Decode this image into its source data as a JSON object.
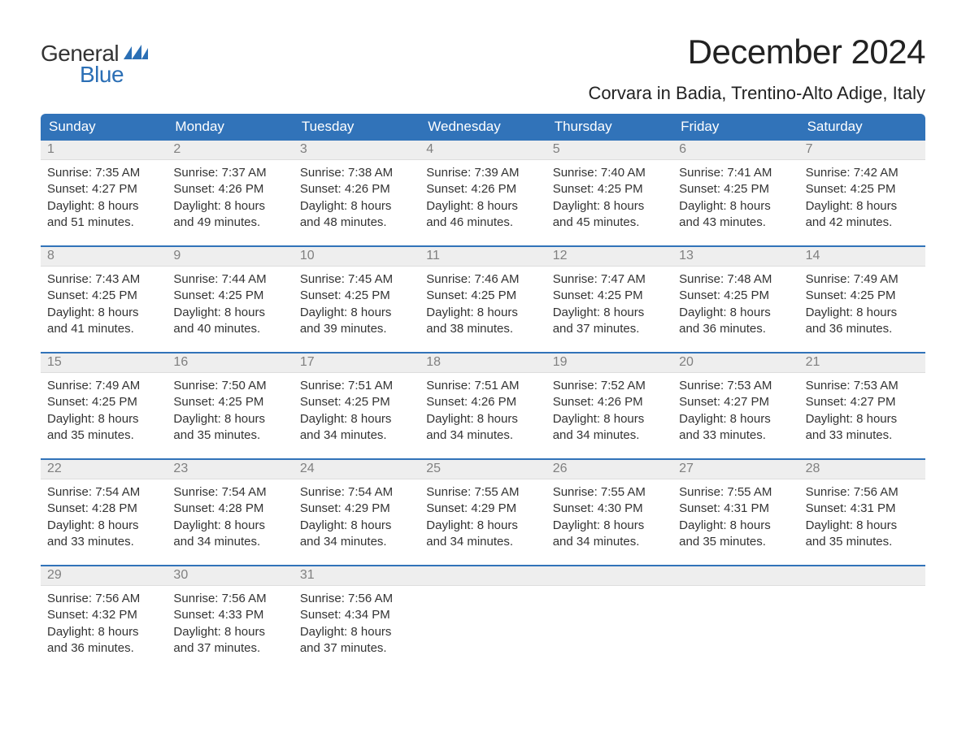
{
  "logo": {
    "text_general": "General",
    "text_blue": "Blue",
    "flag_color": "#2b6fb5"
  },
  "title": "December 2024",
  "location": "Corvara in Badia, Trentino-Alto Adige, Italy",
  "colors": {
    "header_bg": "#3173b9",
    "header_text": "#ffffff",
    "daynum_bg": "#eeeeee",
    "daynum_text": "#808080",
    "rule": "#3173b9",
    "body_text": "#333333",
    "background": "#ffffff"
  },
  "weekdays": [
    "Sunday",
    "Monday",
    "Tuesday",
    "Wednesday",
    "Thursday",
    "Friday",
    "Saturday"
  ],
  "weeks": [
    [
      {
        "day": "1",
        "sunrise": "Sunrise: 7:35 AM",
        "sunset": "Sunset: 4:27 PM",
        "daylight": "Daylight: 8 hours and 51 minutes."
      },
      {
        "day": "2",
        "sunrise": "Sunrise: 7:37 AM",
        "sunset": "Sunset: 4:26 PM",
        "daylight": "Daylight: 8 hours and 49 minutes."
      },
      {
        "day": "3",
        "sunrise": "Sunrise: 7:38 AM",
        "sunset": "Sunset: 4:26 PM",
        "daylight": "Daylight: 8 hours and 48 minutes."
      },
      {
        "day": "4",
        "sunrise": "Sunrise: 7:39 AM",
        "sunset": "Sunset: 4:26 PM",
        "daylight": "Daylight: 8 hours and 46 minutes."
      },
      {
        "day": "5",
        "sunrise": "Sunrise: 7:40 AM",
        "sunset": "Sunset: 4:25 PM",
        "daylight": "Daylight: 8 hours and 45 minutes."
      },
      {
        "day": "6",
        "sunrise": "Sunrise: 7:41 AM",
        "sunset": "Sunset: 4:25 PM",
        "daylight": "Daylight: 8 hours and 43 minutes."
      },
      {
        "day": "7",
        "sunrise": "Sunrise: 7:42 AM",
        "sunset": "Sunset: 4:25 PM",
        "daylight": "Daylight: 8 hours and 42 minutes."
      }
    ],
    [
      {
        "day": "8",
        "sunrise": "Sunrise: 7:43 AM",
        "sunset": "Sunset: 4:25 PM",
        "daylight": "Daylight: 8 hours and 41 minutes."
      },
      {
        "day": "9",
        "sunrise": "Sunrise: 7:44 AM",
        "sunset": "Sunset: 4:25 PM",
        "daylight": "Daylight: 8 hours and 40 minutes."
      },
      {
        "day": "10",
        "sunrise": "Sunrise: 7:45 AM",
        "sunset": "Sunset: 4:25 PM",
        "daylight": "Daylight: 8 hours and 39 minutes."
      },
      {
        "day": "11",
        "sunrise": "Sunrise: 7:46 AM",
        "sunset": "Sunset: 4:25 PM",
        "daylight": "Daylight: 8 hours and 38 minutes."
      },
      {
        "day": "12",
        "sunrise": "Sunrise: 7:47 AM",
        "sunset": "Sunset: 4:25 PM",
        "daylight": "Daylight: 8 hours and 37 minutes."
      },
      {
        "day": "13",
        "sunrise": "Sunrise: 7:48 AM",
        "sunset": "Sunset: 4:25 PM",
        "daylight": "Daylight: 8 hours and 36 minutes."
      },
      {
        "day": "14",
        "sunrise": "Sunrise: 7:49 AM",
        "sunset": "Sunset: 4:25 PM",
        "daylight": "Daylight: 8 hours and 36 minutes."
      }
    ],
    [
      {
        "day": "15",
        "sunrise": "Sunrise: 7:49 AM",
        "sunset": "Sunset: 4:25 PM",
        "daylight": "Daylight: 8 hours and 35 minutes."
      },
      {
        "day": "16",
        "sunrise": "Sunrise: 7:50 AM",
        "sunset": "Sunset: 4:25 PM",
        "daylight": "Daylight: 8 hours and 35 minutes."
      },
      {
        "day": "17",
        "sunrise": "Sunrise: 7:51 AM",
        "sunset": "Sunset: 4:25 PM",
        "daylight": "Daylight: 8 hours and 34 minutes."
      },
      {
        "day": "18",
        "sunrise": "Sunrise: 7:51 AM",
        "sunset": "Sunset: 4:26 PM",
        "daylight": "Daylight: 8 hours and 34 minutes."
      },
      {
        "day": "19",
        "sunrise": "Sunrise: 7:52 AM",
        "sunset": "Sunset: 4:26 PM",
        "daylight": "Daylight: 8 hours and 34 minutes."
      },
      {
        "day": "20",
        "sunrise": "Sunrise: 7:53 AM",
        "sunset": "Sunset: 4:27 PM",
        "daylight": "Daylight: 8 hours and 33 minutes."
      },
      {
        "day": "21",
        "sunrise": "Sunrise: 7:53 AM",
        "sunset": "Sunset: 4:27 PM",
        "daylight": "Daylight: 8 hours and 33 minutes."
      }
    ],
    [
      {
        "day": "22",
        "sunrise": "Sunrise: 7:54 AM",
        "sunset": "Sunset: 4:28 PM",
        "daylight": "Daylight: 8 hours and 33 minutes."
      },
      {
        "day": "23",
        "sunrise": "Sunrise: 7:54 AM",
        "sunset": "Sunset: 4:28 PM",
        "daylight": "Daylight: 8 hours and 34 minutes."
      },
      {
        "day": "24",
        "sunrise": "Sunrise: 7:54 AM",
        "sunset": "Sunset: 4:29 PM",
        "daylight": "Daylight: 8 hours and 34 minutes."
      },
      {
        "day": "25",
        "sunrise": "Sunrise: 7:55 AM",
        "sunset": "Sunset: 4:29 PM",
        "daylight": "Daylight: 8 hours and 34 minutes."
      },
      {
        "day": "26",
        "sunrise": "Sunrise: 7:55 AM",
        "sunset": "Sunset: 4:30 PM",
        "daylight": "Daylight: 8 hours and 34 minutes."
      },
      {
        "day": "27",
        "sunrise": "Sunrise: 7:55 AM",
        "sunset": "Sunset: 4:31 PM",
        "daylight": "Daylight: 8 hours and 35 minutes."
      },
      {
        "day": "28",
        "sunrise": "Sunrise: 7:56 AM",
        "sunset": "Sunset: 4:31 PM",
        "daylight": "Daylight: 8 hours and 35 minutes."
      }
    ],
    [
      {
        "day": "29",
        "sunrise": "Sunrise: 7:56 AM",
        "sunset": "Sunset: 4:32 PM",
        "daylight": "Daylight: 8 hours and 36 minutes."
      },
      {
        "day": "30",
        "sunrise": "Sunrise: 7:56 AM",
        "sunset": "Sunset: 4:33 PM",
        "daylight": "Daylight: 8 hours and 37 minutes."
      },
      {
        "day": "31",
        "sunrise": "Sunrise: 7:56 AM",
        "sunset": "Sunset: 4:34 PM",
        "daylight": "Daylight: 8 hours and 37 minutes."
      },
      null,
      null,
      null,
      null
    ]
  ]
}
